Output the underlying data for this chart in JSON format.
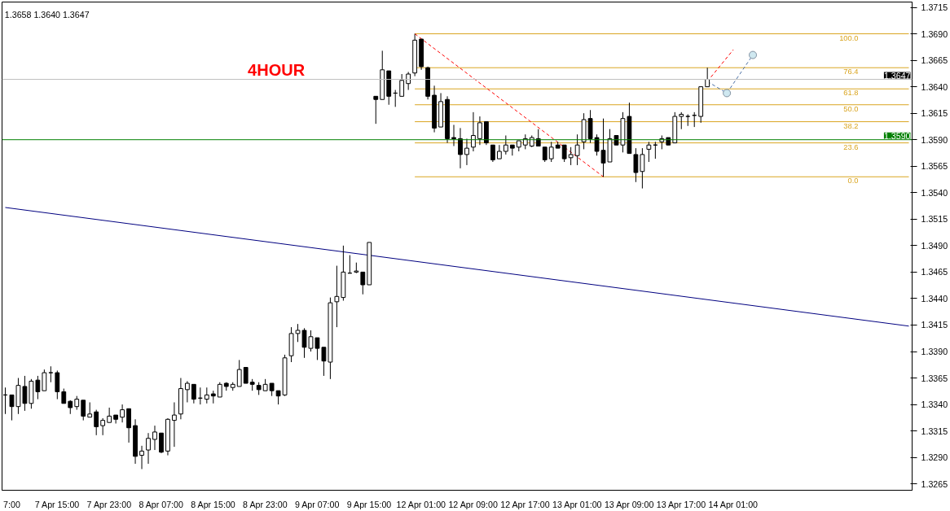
{
  "chart_data": {
    "type": "candlestick",
    "color": "#000000",
    "annotations": [
      "1.3658 1.3640 1.3647",
      "4HOUR"
    ],
    "categories": [
      null,
      "7:00",
      null,
      null,
      null,
      null,
      null,
      null,
      "7 Apr 15:00",
      null,
      null,
      null,
      null,
      null,
      null,
      null,
      "7 Apr 23:00",
      null,
      null,
      null,
      null,
      null,
      null,
      null,
      "8 Apr 07:00",
      null,
      null,
      null,
      null,
      null,
      null,
      null,
      "8 Apr 15:00",
      null,
      null,
      null,
      null,
      null,
      null,
      null,
      "8 Apr 23:00",
      null,
      null,
      null,
      null,
      null,
      null,
      null,
      "9 Apr 07:00",
      null,
      null,
      null,
      null,
      null,
      null,
      null,
      "9 Apr 15:00",
      null,
      null,
      null,
      null,
      null,
      null,
      null,
      "12 Apr 01:00",
      null,
      null,
      null,
      null,
      null,
      null,
      null,
      "12 Apr 09:00",
      null,
      null,
      null,
      null,
      null,
      null,
      null,
      "12 Apr 17:00",
      null,
      null,
      null,
      null,
      null,
      null,
      null,
      "13 Apr 01:00",
      null,
      null,
      null,
      null,
      null,
      null,
      null,
      "13 Apr 09:00",
      null,
      null,
      null,
      null,
      null,
      null,
      null,
      "13 Apr 17:00",
      null,
      null,
      null,
      null,
      null,
      null,
      null,
      "14 Apr 01:00",
      null,
      null,
      null,
      null,
      null,
      null,
      null,
      null,
      null,
      null,
      null,
      null,
      null,
      null,
      null,
      null,
      null,
      null,
      null,
      null,
      null,
      null,
      null,
      null,
      null,
      null,
      null
    ],
    "ohlc": [
      [
        1.3349,
        1.3356,
        1.3331,
        1.3349
      ],
      [
        1.3349,
        1.3349,
        1.3325,
        1.3338
      ],
      [
        1.3338,
        1.3365,
        1.3331,
        1.3358
      ],
      [
        1.3357,
        1.3367,
        1.3334,
        1.3341
      ],
      [
        1.3341,
        1.3364,
        1.3336,
        1.3362
      ],
      [
        1.3363,
        1.3367,
        1.3345,
        1.3352
      ],
      [
        1.3353,
        1.3373,
        1.3353,
        1.337
      ],
      [
        1.337,
        1.3376,
        1.3361,
        1.337
      ],
      [
        1.337,
        1.3372,
        1.3345,
        1.3352
      ],
      [
        1.3352,
        1.3355,
        1.3341,
        1.3341
      ],
      [
        1.3343,
        1.3344,
        1.3331,
        1.3337
      ],
      [
        1.3338,
        1.3348,
        1.3335,
        1.3345
      ],
      [
        1.3344,
        1.3344,
        1.3325,
        1.3329
      ],
      [
        1.3328,
        1.3342,
        1.3328,
        1.3331
      ],
      [
        1.3333,
        1.3335,
        1.3311,
        1.3319
      ],
      [
        1.332,
        1.3327,
        1.3311,
        1.3325
      ],
      [
        1.3323,
        1.3337,
        1.3323,
        1.3329
      ],
      [
        1.333,
        1.333,
        1.3322,
        1.3326
      ],
      [
        1.3328,
        1.334,
        1.3323,
        1.3335
      ],
      [
        1.3336,
        1.3336,
        1.3304,
        1.3318
      ],
      [
        1.332,
        1.3326,
        1.3284,
        1.3291
      ],
      [
        1.3292,
        1.3301,
        1.3279,
        1.3296
      ],
      [
        1.3297,
        1.3313,
        1.3284,
        1.3308
      ],
      [
        1.3307,
        1.332,
        1.3297,
        1.3314
      ],
      [
        1.3313,
        1.3313,
        1.3294,
        1.3295
      ],
      [
        1.3296,
        1.3327,
        1.3292,
        1.3326
      ],
      [
        1.3325,
        1.3342,
        1.33,
        1.333
      ],
      [
        1.3331,
        1.3365,
        1.3326,
        1.3355
      ],
      [
        1.3354,
        1.3362,
        1.3342,
        1.336
      ],
      [
        1.3359,
        1.3359,
        1.3341,
        1.3345
      ],
      [
        1.3346,
        1.3356,
        1.334,
        1.3346
      ],
      [
        1.3345,
        1.3356,
        1.3341,
        1.3349
      ],
      [
        1.335,
        1.3353,
        1.3341,
        1.3348
      ],
      [
        1.3347,
        1.3361,
        1.3347,
        1.3359
      ],
      [
        1.336,
        1.3361,
        1.3353,
        1.3357
      ],
      [
        1.3356,
        1.3361,
        1.3353,
        1.3359
      ],
      [
        1.3357,
        1.3382,
        1.3357,
        1.3373
      ],
      [
        1.3375,
        1.3375,
        1.336,
        1.336
      ],
      [
        1.3361,
        1.3364,
        1.3353,
        1.3359
      ],
      [
        1.3358,
        1.3361,
        1.3349,
        1.3354
      ],
      [
        1.3353,
        1.3364,
        1.3353,
        1.3359
      ],
      [
        1.336,
        1.336,
        1.3348,
        1.3353
      ],
      [
        1.3353,
        1.3353,
        1.334,
        1.3348
      ],
      [
        1.3349,
        1.3387,
        1.3348,
        1.3384
      ],
      [
        1.3386,
        1.3413,
        1.338,
        1.3407
      ],
      [
        1.3407,
        1.3416,
        1.3399,
        1.341
      ],
      [
        1.341,
        1.3412,
        1.3384,
        1.3394
      ],
      [
        1.3393,
        1.341,
        1.339,
        1.3404
      ],
      [
        1.3403,
        1.3403,
        1.3382,
        1.3393
      ],
      [
        1.3394,
        1.3394,
        1.3367,
        1.3381
      ],
      [
        1.338,
        1.3441,
        1.3364,
        1.3436
      ],
      [
        1.3437,
        1.3471,
        1.3413,
        1.3442
      ],
      [
        1.3441,
        1.349,
        1.3438,
        1.3465
      ],
      [
        1.3464,
        1.3481,
        1.3464,
        1.3464
      ],
      [
        1.3465,
        1.3474,
        1.3464,
        1.3466
      ],
      [
        1.3465,
        1.3465,
        1.3444,
        1.3453
      ],
      [
        1.3453,
        1.3493,
        1.3453,
        1.3493
      ],
      [
        1.3631,
        1.3631,
        1.3605,
        1.3628
      ],
      [
        1.3628,
        1.3674,
        1.3628,
        1.3656
      ],
      [
        1.3655,
        1.3655,
        1.3623,
        1.3631
      ],
      [
        1.3634,
        1.3637,
        1.3621,
        1.3634
      ],
      [
        1.3631,
        1.3652,
        1.3631,
        1.3646
      ],
      [
        1.3643,
        1.3654,
        1.3637,
        1.3652
      ],
      [
        1.3653,
        1.369,
        1.365,
        1.3684
      ],
      [
        1.3685,
        1.3685,
        1.3656,
        1.3659
      ],
      [
        1.3658,
        1.3659,
        1.3628,
        1.3631
      ],
      [
        1.3632,
        1.3641,
        1.3597,
        1.3601
      ],
      [
        1.3602,
        1.3634,
        1.3602,
        1.3626
      ],
      [
        1.3628,
        1.3631,
        1.3587,
        1.3591
      ],
      [
        1.3592,
        1.3604,
        1.3584,
        1.3591
      ],
      [
        1.3591,
        1.3601,
        1.3563,
        1.3576
      ],
      [
        1.3576,
        1.3591,
        1.3566,
        1.3582
      ],
      [
        1.3583,
        1.3616,
        1.3579,
        1.3594
      ],
      [
        1.3591,
        1.3612,
        1.3585,
        1.3606
      ],
      [
        1.3607,
        1.3607,
        1.3585,
        1.3587
      ],
      [
        1.3585,
        1.3585,
        1.3569,
        1.3571
      ],
      [
        1.3572,
        1.3585,
        1.3572,
        1.3579
      ],
      [
        1.3579,
        1.3594,
        1.3576,
        1.3585
      ],
      [
        1.3585,
        1.3585,
        1.3575,
        1.3582
      ],
      [
        1.3583,
        1.3589,
        1.3579,
        1.3589
      ],
      [
        1.3585,
        1.3595,
        1.3581,
        1.3591
      ],
      [
        1.3584,
        1.3594,
        1.3583,
        1.3592
      ],
      [
        1.3591,
        1.36,
        1.3584,
        1.3584
      ],
      [
        1.3583,
        1.3583,
        1.3569,
        1.3571
      ],
      [
        1.3572,
        1.3588,
        1.3569,
        1.3583
      ],
      [
        1.3585,
        1.3588,
        1.3582,
        1.3582
      ],
      [
        1.3585,
        1.3585,
        1.3569,
        1.3572
      ],
      [
        1.3573,
        1.3583,
        1.3566,
        1.3576
      ],
      [
        1.3575,
        1.3595,
        1.3566,
        1.3585
      ],
      [
        1.3588,
        1.3615,
        1.3581,
        1.3609
      ],
      [
        1.361,
        1.3618,
        1.3587,
        1.3591
      ],
      [
        1.3592,
        1.3595,
        1.3575,
        1.3579
      ],
      [
        1.358,
        1.361,
        1.3555,
        1.3568
      ],
      [
        1.3569,
        1.36,
        1.3569,
        1.3591
      ],
      [
        1.3594,
        1.3594,
        1.3585,
        1.3585
      ],
      [
        1.3585,
        1.3616,
        1.3578,
        1.361
      ],
      [
        1.3612,
        1.3625,
        1.3577,
        1.3577
      ],
      [
        1.3576,
        1.3582,
        1.355,
        1.3559
      ],
      [
        1.356,
        1.3582,
        1.3544,
        1.3576
      ],
      [
        1.3581,
        1.3588,
        1.3569,
        1.3585
      ],
      [
        1.3585,
        1.3588,
        1.3572,
        1.3585
      ],
      [
        1.3588,
        1.3594,
        1.3581,
        1.3591
      ],
      [
        1.3592,
        1.3592,
        1.3585,
        1.3585
      ],
      [
        1.3587,
        1.3616,
        1.3587,
        1.3612
      ],
      [
        1.3612,
        1.3616,
        1.36,
        1.3614
      ],
      [
        1.3612,
        1.3614,
        1.3603,
        1.3612
      ],
      [
        1.3613,
        1.3616,
        1.3602,
        1.3613
      ],
      [
        1.3612,
        1.364,
        1.3606,
        1.364
      ],
      [
        1.364,
        1.3658,
        1.364,
        1.3647
      ],
      null,
      null,
      null,
      null,
      null,
      null,
      null,
      null,
      null,
      null,
      null,
      null,
      null,
      null,
      null,
      null,
      null,
      null,
      null,
      null,
      null,
      null,
      null,
      null,
      null,
      null,
      null,
      null,
      null,
      null,
      null
    ],
    "series": [
      {
        "type": "line",
        "name": "100.0",
        "color": "#daa520",
        "values": [
          null,
          null,
          null,
          null,
          null,
          null,
          null,
          null,
          null,
          null,
          null,
          null,
          null,
          null,
          null,
          null,
          null,
          null,
          null,
          null,
          null,
          null,
          null,
          null,
          null,
          null,
          null,
          null,
          null,
          null,
          null,
          null,
          null,
          null,
          null,
          null,
          null,
          null,
          null,
          null,
          null,
          null,
          null,
          null,
          null,
          null,
          null,
          null,
          null,
          null,
          null,
          null,
          null,
          null,
          null,
          null,
          null,
          null,
          null,
          null,
          null,
          null,
          null,
          1.369,
          null,
          null,
          null,
          null,
          null,
          null,
          null,
          null,
          null,
          null,
          null,
          null,
          null,
          null,
          null,
          null,
          null,
          null,
          null,
          null,
          null,
          null,
          null,
          null,
          null,
          null,
          null,
          null,
          null,
          null,
          null,
          null,
          null,
          null,
          null,
          null,
          null,
          null,
          null,
          null,
          null,
          null,
          null,
          null,
          null,
          null,
          null,
          null,
          null,
          null,
          null,
          null,
          null,
          null,
          null,
          null,
          null,
          null,
          null,
          null,
          null,
          null,
          null,
          null,
          null,
          null,
          null,
          null,
          null,
          null,
          null,
          null,
          null,
          null,
          null,
          1.369
        ]
      },
      {
        "type": "line",
        "name": "76.4",
        "color": "#daa520",
        "values": [
          null,
          null,
          null,
          null,
          null,
          null,
          null,
          null,
          null,
          null,
          null,
          null,
          null,
          null,
          null,
          null,
          null,
          null,
          null,
          null,
          null,
          null,
          null,
          null,
          null,
          null,
          null,
          null,
          null,
          null,
          null,
          null,
          null,
          null,
          null,
          null,
          null,
          null,
          null,
          null,
          null,
          null,
          null,
          null,
          null,
          null,
          null,
          null,
          null,
          null,
          null,
          null,
          null,
          null,
          null,
          null,
          null,
          null,
          null,
          null,
          null,
          null,
          null,
          1.3658,
          null,
          null,
          null,
          null,
          null,
          null,
          null,
          null,
          null,
          null,
          null,
          null,
          null,
          null,
          null,
          null,
          null,
          null,
          null,
          null,
          null,
          null,
          null,
          null,
          null,
          null,
          null,
          null,
          null,
          null,
          null,
          null,
          null,
          null,
          null,
          null,
          null,
          null,
          null,
          null,
          null,
          null,
          null,
          null,
          null,
          null,
          null,
          null,
          null,
          null,
          null,
          null,
          null,
          null,
          null,
          null,
          null,
          null,
          null,
          null,
          null,
          null,
          null,
          null,
          null,
          null,
          null,
          null,
          null,
          null,
          null,
          null,
          null,
          null,
          null,
          1.3658
        ]
      },
      {
        "type": "line",
        "name": "61.8",
        "color": "#daa520",
        "values": [
          null,
          null,
          null,
          null,
          null,
          null,
          null,
          null,
          null,
          null,
          null,
          null,
          null,
          null,
          null,
          null,
          null,
          null,
          null,
          null,
          null,
          null,
          null,
          null,
          null,
          null,
          null,
          null,
          null,
          null,
          null,
          null,
          null,
          null,
          null,
          null,
          null,
          null,
          null,
          null,
          null,
          null,
          null,
          null,
          null,
          null,
          null,
          null,
          null,
          null,
          null,
          null,
          null,
          null,
          null,
          null,
          null,
          null,
          null,
          null,
          null,
          null,
          null,
          1.3638,
          null,
          null,
          null,
          null,
          null,
          null,
          null,
          null,
          null,
          null,
          null,
          null,
          null,
          null,
          null,
          null,
          null,
          null,
          null,
          null,
          null,
          null,
          null,
          null,
          null,
          null,
          null,
          null,
          null,
          null,
          null,
          null,
          null,
          null,
          null,
          null,
          null,
          null,
          null,
          null,
          null,
          null,
          null,
          null,
          null,
          null,
          null,
          null,
          null,
          null,
          null,
          null,
          null,
          null,
          null,
          null,
          null,
          null,
          null,
          null,
          null,
          null,
          null,
          null,
          null,
          null,
          null,
          null,
          null,
          null,
          null,
          null,
          null,
          null,
          null,
          1.3638
        ]
      },
      {
        "type": "line",
        "name": "50.0",
        "color": "#daa520",
        "values": [
          null,
          null,
          null,
          null,
          null,
          null,
          null,
          null,
          null,
          null,
          null,
          null,
          null,
          null,
          null,
          null,
          null,
          null,
          null,
          null,
          null,
          null,
          null,
          null,
          null,
          null,
          null,
          null,
          null,
          null,
          null,
          null,
          null,
          null,
          null,
          null,
          null,
          null,
          null,
          null,
          null,
          null,
          null,
          null,
          null,
          null,
          null,
          null,
          null,
          null,
          null,
          null,
          null,
          null,
          null,
          null,
          null,
          null,
          null,
          null,
          null,
          null,
          null,
          1.3623,
          null,
          null,
          null,
          null,
          null,
          null,
          null,
          null,
          null,
          null,
          null,
          null,
          null,
          null,
          null,
          null,
          null,
          null,
          null,
          null,
          null,
          null,
          null,
          null,
          null,
          null,
          null,
          null,
          null,
          null,
          null,
          null,
          null,
          null,
          null,
          null,
          null,
          null,
          null,
          null,
          null,
          null,
          null,
          null,
          null,
          null,
          null,
          null,
          null,
          null,
          null,
          null,
          null,
          null,
          null,
          null,
          null,
          null,
          null,
          null,
          null,
          null,
          null,
          null,
          null,
          null,
          null,
          null,
          null,
          null,
          null,
          null,
          null,
          null,
          null,
          1.3623
        ]
      },
      {
        "type": "line",
        "name": "38.2",
        "color": "#daa520",
        "values": [
          null,
          null,
          null,
          null,
          null,
          null,
          null,
          null,
          null,
          null,
          null,
          null,
          null,
          null,
          null,
          null,
          null,
          null,
          null,
          null,
          null,
          null,
          null,
          null,
          null,
          null,
          null,
          null,
          null,
          null,
          null,
          null,
          null,
          null,
          null,
          null,
          null,
          null,
          null,
          null,
          null,
          null,
          null,
          null,
          null,
          null,
          null,
          null,
          null,
          null,
          null,
          null,
          null,
          null,
          null,
          null,
          null,
          null,
          null,
          null,
          null,
          null,
          null,
          1.3607,
          null,
          null,
          null,
          null,
          null,
          null,
          null,
          null,
          null,
          null,
          null,
          null,
          null,
          null,
          null,
          null,
          null,
          null,
          null,
          null,
          null,
          null,
          null,
          null,
          null,
          null,
          null,
          null,
          null,
          null,
          null,
          null,
          null,
          null,
          null,
          null,
          null,
          null,
          null,
          null,
          null,
          null,
          null,
          null,
          null,
          null,
          null,
          null,
          null,
          null,
          null,
          null,
          null,
          null,
          null,
          null,
          null,
          null,
          null,
          null,
          null,
          null,
          null,
          null,
          null,
          null,
          null,
          null,
          null,
          null,
          null,
          null,
          null,
          null,
          null,
          1.3607
        ]
      },
      {
        "type": "line",
        "name": "23.6",
        "color": "#daa520",
        "values": [
          null,
          null,
          null,
          null,
          null,
          null,
          null,
          null,
          null,
          null,
          null,
          null,
          null,
          null,
          null,
          null,
          null,
          null,
          null,
          null,
          null,
          null,
          null,
          null,
          null,
          null,
          null,
          null,
          null,
          null,
          null,
          null,
          null,
          null,
          null,
          null,
          null,
          null,
          null,
          null,
          null,
          null,
          null,
          null,
          null,
          null,
          null,
          null,
          null,
          null,
          null,
          null,
          null,
          null,
          null,
          null,
          null,
          null,
          null,
          null,
          null,
          null,
          null,
          1.3587,
          null,
          null,
          null,
          null,
          null,
          null,
          null,
          null,
          null,
          null,
          null,
          null,
          null,
          null,
          null,
          null,
          null,
          null,
          null,
          null,
          null,
          null,
          null,
          null,
          null,
          null,
          null,
          null,
          null,
          null,
          null,
          null,
          null,
          null,
          null,
          null,
          null,
          null,
          null,
          null,
          null,
          null,
          null,
          null,
          null,
          null,
          null,
          null,
          null,
          null,
          null,
          null,
          null,
          null,
          null,
          null,
          null,
          null,
          null,
          null,
          null,
          null,
          null,
          null,
          null,
          null,
          null,
          null,
          null,
          null,
          null,
          null,
          null,
          null,
          null,
          1.3587
        ]
      },
      {
        "type": "line",
        "name": "0.0",
        "color": "#daa520",
        "values": [
          null,
          null,
          null,
          null,
          null,
          null,
          null,
          null,
          null,
          null,
          null,
          null,
          null,
          null,
          null,
          null,
          null,
          null,
          null,
          null,
          null,
          null,
          null,
          null,
          null,
          null,
          null,
          null,
          null,
          null,
          null,
          null,
          null,
          null,
          null,
          null,
          null,
          null,
          null,
          null,
          null,
          null,
          null,
          null,
          null,
          null,
          null,
          null,
          null,
          null,
          null,
          null,
          null,
          null,
          null,
          null,
          null,
          null,
          null,
          null,
          null,
          null,
          null,
          1.3555,
          null,
          null,
          null,
          null,
          null,
          null,
          null,
          null,
          null,
          null,
          null,
          null,
          null,
          null,
          null,
          null,
          null,
          null,
          null,
          null,
          null,
          null,
          null,
          null,
          null,
          null,
          null,
          null,
          null,
          null,
          null,
          null,
          null,
          null,
          null,
          null,
          null,
          null,
          null,
          null,
          null,
          null,
          null,
          null,
          null,
          null,
          null,
          null,
          null,
          null,
          null,
          null,
          null,
          null,
          null,
          null,
          null,
          null,
          null,
          null,
          null,
          null,
          null,
          null,
          null,
          null,
          null,
          null,
          null,
          null,
          null,
          null,
          null,
          null,
          null,
          1.3555
        ]
      },
      {
        "type": "line",
        "color": "#ff0000",
        "line_style": "dashed",
        "values": [
          null,
          null,
          null,
          null,
          null,
          null,
          null,
          null,
          null,
          null,
          null,
          null,
          null,
          null,
          null,
          null,
          null,
          null,
          null,
          null,
          null,
          null,
          null,
          null,
          null,
          null,
          null,
          null,
          null,
          null,
          null,
          null,
          null,
          null,
          null,
          null,
          null,
          null,
          null,
          null,
          null,
          null,
          null,
          null,
          null,
          null,
          null,
          null,
          null,
          null,
          null,
          null,
          null,
          null,
          null,
          null,
          null,
          null,
          null,
          null,
          null,
          null,
          null,
          1.369,
          null,
          null,
          null,
          null,
          null,
          null,
          null,
          null,
          null,
          null,
          null,
          null,
          null,
          null,
          null,
          null,
          null,
          null,
          null,
          null,
          null,
          null,
          null,
          null,
          null,
          null,
          null,
          null,
          1.3555,
          null,
          null,
          null,
          null,
          null,
          null,
          null,
          null,
          null,
          null,
          null,
          null,
          null,
          null,
          null,
          null,
          null,
          null,
          null,
          null,
          null,
          null,
          null,
          null,
          null,
          null,
          null,
          null,
          null,
          null,
          null,
          null,
          null,
          null,
          null,
          null,
          null,
          null,
          null,
          null,
          null,
          null,
          null,
          null,
          null,
          null,
          null
        ]
      },
      {
        "type": "line",
        "color": "#000080",
        "values": [
          1.3526,
          null,
          null,
          null,
          null,
          null,
          null,
          null,
          null,
          null,
          null,
          null,
          null,
          null,
          null,
          null,
          null,
          null,
          null,
          null,
          null,
          null,
          null,
          null,
          null,
          null,
          null,
          null,
          null,
          null,
          null,
          null,
          null,
          null,
          null,
          null,
          null,
          null,
          null,
          null,
          null,
          null,
          null,
          null,
          null,
          null,
          null,
          null,
          null,
          null,
          null,
          null,
          null,
          null,
          null,
          null,
          null,
          null,
          null,
          null,
          null,
          null,
          null,
          null,
          null,
          null,
          null,
          null,
          null,
          null,
          null,
          null,
          null,
          null,
          null,
          null,
          null,
          null,
          null,
          null,
          null,
          null,
          null,
          null,
          null,
          null,
          null,
          null,
          null,
          null,
          null,
          null,
          null,
          null,
          null,
          null,
          null,
          null,
          null,
          null,
          null,
          null,
          null,
          null,
          null,
          null,
          null,
          null,
          null,
          null,
          null,
          null,
          null,
          null,
          null,
          null,
          null,
          null,
          null,
          null,
          null,
          null,
          null,
          null,
          null,
          null,
          null,
          null,
          null,
          null,
          null,
          null,
          null,
          null,
          null,
          null,
          null,
          null,
          null,
          1.3414
        ]
      },
      {
        "type": "line",
        "color": "#ff0000",
        "line_style": "dashed",
        "values": [
          null,
          null,
          null,
          null,
          null,
          null,
          null,
          null,
          null,
          null,
          null,
          null,
          null,
          null,
          null,
          null,
          null,
          null,
          null,
          null,
          null,
          null,
          null,
          null,
          null,
          null,
          null,
          null,
          null,
          null,
          null,
          null,
          null,
          null,
          null,
          null,
          null,
          null,
          null,
          null,
          null,
          null,
          null,
          null,
          null,
          null,
          null,
          null,
          null,
          null,
          null,
          null,
          null,
          null,
          null,
          null,
          null,
          null,
          null,
          null,
          null,
          null,
          null,
          null,
          null,
          null,
          null,
          null,
          null,
          null,
          null,
          null,
          null,
          null,
          null,
          null,
          null,
          null,
          null,
          null,
          null,
          null,
          null,
          null,
          null,
          null,
          null,
          null,
          null,
          null,
          null,
          null,
          null,
          null,
          null,
          null,
          null,
          null,
          null,
          null,
          null,
          null,
          null,
          null,
          null,
          null,
          null,
          null,
          1.3645,
          null,
          null,
          null,
          1.3675,
          null,
          null,
          null,
          null,
          null,
          null,
          null,
          null,
          null,
          null,
          null,
          null,
          null,
          null,
          null,
          null,
          null,
          null,
          null,
          null,
          null,
          null,
          null,
          null,
          null,
          null,
          null
        ]
      },
      {
        "type": "line",
        "color": "#4a6fa5",
        "line_style": "dashed",
        "marker": "circle",
        "values": [
          null,
          null,
          null,
          null,
          null,
          null,
          null,
          null,
          null,
          null,
          null,
          null,
          null,
          null,
          null,
          null,
          null,
          null,
          null,
          null,
          null,
          null,
          null,
          null,
          null,
          null,
          null,
          null,
          null,
          null,
          null,
          null,
          null,
          null,
          null,
          null,
          null,
          null,
          null,
          null,
          null,
          null,
          null,
          null,
          null,
          null,
          null,
          null,
          null,
          null,
          null,
          null,
          null,
          null,
          null,
          null,
          null,
          null,
          null,
          null,
          null,
          null,
          null,
          null,
          null,
          null,
          null,
          null,
          null,
          null,
          null,
          null,
          null,
          null,
          null,
          null,
          null,
          null,
          null,
          null,
          null,
          null,
          null,
          null,
          null,
          null,
          null,
          null,
          null,
          null,
          null,
          null,
          null,
          null,
          null,
          null,
          null,
          null,
          null,
          null,
          null,
          null,
          null,
          null,
          null,
          null,
          null,
          null,
          1.3645,
          null,
          null,
          1.3634,
          null,
          null,
          null,
          1.367,
          null,
          null,
          null,
          null,
          null,
          null,
          null,
          null,
          null,
          null,
          null,
          null,
          null,
          null,
          null,
          null,
          null,
          null,
          null,
          null,
          null,
          null,
          null,
          null
        ]
      }
    ],
    "ref_lines": [
      {
        "axis": "y",
        "value": 1.359,
        "label": "1.3590",
        "color": "#008000",
        "line_style": "solid"
      },
      {
        "axis": "y",
        "value": 1.3647,
        "label": "1.3647",
        "color": "#c0c0c0",
        "line_style": "solid"
      }
    ],
    "ylim": [
      1.3259,
      1.372
    ],
    "yticks": [
      1.3265,
      {
        "value": 1.329,
        "label": "1.3290"
      },
      1.3315,
      {
        "value": 1.334,
        "label": "1.3340"
      },
      1.3365,
      {
        "value": 1.339,
        "label": "1.3390"
      },
      1.3415,
      {
        "value": 1.344,
        "label": "1.3440"
      },
      1.3465,
      {
        "value": 1.349,
        "label": "1.3490"
      },
      1.3515,
      {
        "value": 1.354,
        "label": "1.3540"
      },
      1.3565,
      {
        "value": 1.359,
        "label": "1.3590"
      },
      1.3615,
      {
        "value": 1.364,
        "label": "1.3640"
      },
      1.3665,
      {
        "value": 1.369,
        "label": "1.3690"
      },
      1.3715
    ],
    "grid": false
  }
}
